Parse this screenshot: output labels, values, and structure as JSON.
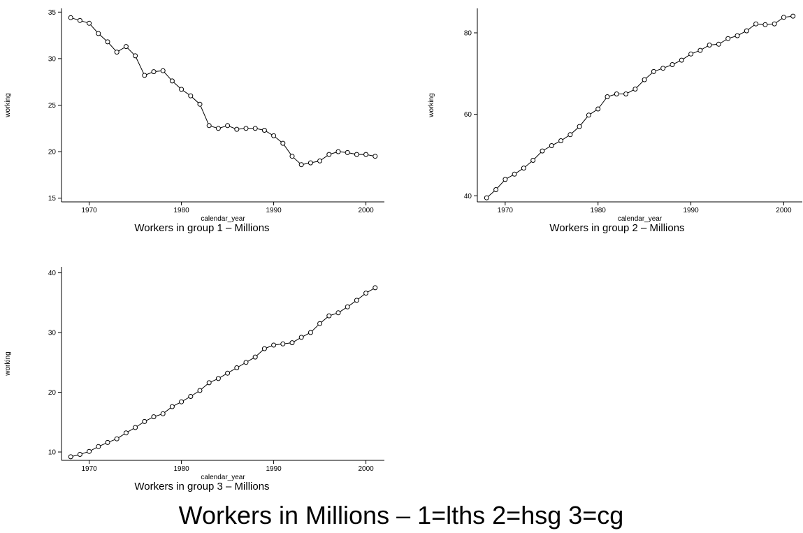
{
  "figure": {
    "title": "Workers in Millions – 1=lths 2=hsg 3=cg"
  },
  "chart_data": [
    {
      "type": "line",
      "title": "Workers in group 1 – Millions",
      "xlabel": "calendar_year",
      "ylabel": "working",
      "xlim": [
        1967,
        2002
      ],
      "ylim": [
        14.6,
        35.4
      ],
      "xticks": [
        1970,
        1980,
        1990,
        2000
      ],
      "yticks": [
        15,
        20,
        25,
        30,
        35
      ],
      "marker": "hollow-circle",
      "color": "#000000",
      "x": [
        1968,
        1969,
        1970,
        1971,
        1972,
        1973,
        1974,
        1975,
        1976,
        1977,
        1978,
        1979,
        1980,
        1981,
        1982,
        1983,
        1984,
        1985,
        1986,
        1987,
        1988,
        1989,
        1990,
        1991,
        1992,
        1993,
        1994,
        1995,
        1996,
        1997,
        1998,
        1999,
        2000,
        2001
      ],
      "y": [
        34.4,
        34.1,
        33.8,
        32.7,
        31.8,
        30.7,
        31.3,
        30.3,
        28.2,
        28.6,
        28.7,
        27.6,
        26.7,
        26.0,
        25.1,
        22.8,
        22.5,
        22.8,
        22.4,
        22.5,
        22.5,
        22.3,
        21.7,
        20.9,
        19.5,
        18.6,
        18.8,
        19.0,
        19.7,
        20.0,
        19.9,
        19.7,
        19.7,
        19.5
      ]
    },
    {
      "type": "line",
      "title": "Workers in group 2 – Millions",
      "xlabel": "calendar_year",
      "ylabel": "working",
      "xlim": [
        1967,
        2002
      ],
      "ylim": [
        38.5,
        86.0
      ],
      "xticks": [
        1970,
        1980,
        1990,
        2000
      ],
      "yticks": [
        40,
        60,
        80
      ],
      "marker": "hollow-circle",
      "color": "#000000",
      "x": [
        1968,
        1969,
        1970,
        1971,
        1972,
        1973,
        1974,
        1975,
        1976,
        1977,
        1978,
        1979,
        1980,
        1981,
        1982,
        1983,
        1984,
        1985,
        1986,
        1987,
        1988,
        1989,
        1990,
        1991,
        1992,
        1993,
        1994,
        1995,
        1996,
        1997,
        1998,
        1999,
        2000,
        2001
      ],
      "y": [
        39.5,
        41.5,
        44.0,
        45.3,
        46.8,
        48.7,
        51.0,
        52.3,
        53.5,
        55.0,
        57.0,
        59.8,
        61.3,
        64.3,
        65.0,
        65.0,
        66.2,
        68.5,
        70.5,
        71.3,
        72.2,
        73.3,
        74.8,
        75.7,
        77.0,
        77.2,
        78.6,
        79.3,
        80.5,
        82.2,
        82.0,
        82.2,
        83.8,
        84.1
      ]
    },
    {
      "type": "line",
      "title": "Workers in group 3 – Millions",
      "xlabel": "calendar_year",
      "ylabel": "working",
      "xlim": [
        1967,
        2002
      ],
      "ylim": [
        8.6,
        41.0
      ],
      "xticks": [
        1970,
        1980,
        1990,
        2000
      ],
      "yticks": [
        10,
        20,
        30,
        40
      ],
      "marker": "hollow-circle",
      "color": "#000000",
      "x": [
        1968,
        1969,
        1970,
        1971,
        1972,
        1973,
        1974,
        1975,
        1976,
        1977,
        1978,
        1979,
        1980,
        1981,
        1982,
        1983,
        1984,
        1985,
        1986,
        1987,
        1988,
        1989,
        1990,
        1991,
        1992,
        1993,
        1994,
        1995,
        1996,
        1997,
        1998,
        1999,
        2000,
        2001
      ],
      "y": [
        9.2,
        9.6,
        10.1,
        10.9,
        11.6,
        12.2,
        13.2,
        14.1,
        15.1,
        15.9,
        16.4,
        17.6,
        18.4,
        19.3,
        20.3,
        21.6,
        22.3,
        23.2,
        24.1,
        25.0,
        25.9,
        27.3,
        27.9,
        28.1,
        28.3,
        29.2,
        30.0,
        31.5,
        32.8,
        33.3,
        34.3,
        35.4,
        36.6,
        37.5
      ]
    }
  ]
}
